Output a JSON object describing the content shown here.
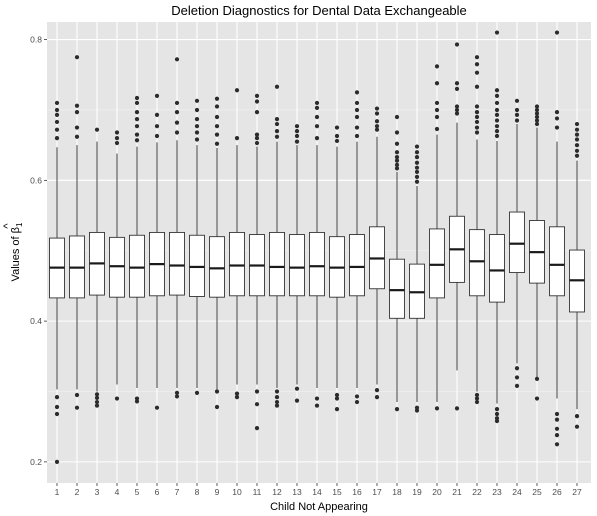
{
  "chart_data": {
    "type": "boxplot",
    "title": "Deletion Diagnostics for Dental Data Exchangeable",
    "xlabel": "Child Not Appearing",
    "ylabel_prefix": "Values of ",
    "ylabel_symbol": "β",
    "ylabel_hat": "^",
    "ylabel_subscript": "1",
    "ylim": [
      0.17,
      0.825
    ],
    "yticks": [
      0.2,
      0.4,
      0.6,
      0.8
    ],
    "ytick_labels": [
      "0.2",
      "0.4",
      "0.6",
      "0.8"
    ],
    "categories": [
      "1",
      "2",
      "3",
      "4",
      "5",
      "6",
      "7",
      "8",
      "9",
      "10",
      "11",
      "12",
      "13",
      "14",
      "15",
      "16",
      "17",
      "18",
      "19",
      "20",
      "21",
      "22",
      "23",
      "24",
      "25",
      "26",
      "27"
    ],
    "grid": true,
    "colors": {
      "panel_background": "#e5e5e5",
      "grid_major": "#ffffff",
      "box_fill": "#ffffff",
      "box_stroke": "#333333",
      "median": "#1a1a1a",
      "outlier": "#2b2b2b"
    },
    "boxes": [
      {
        "q1": 0.433,
        "median": 0.476,
        "q3": 0.518,
        "whisker_low": 0.303,
        "whisker_high": 0.647,
        "outliers": [
          0.2,
          0.268,
          0.278,
          0.292,
          0.66,
          0.672,
          0.683,
          0.693,
          0.7,
          0.71
        ]
      },
      {
        "q1": 0.433,
        "median": 0.476,
        "q3": 0.521,
        "whisker_low": 0.303,
        "whisker_high": 0.65,
        "outliers": [
          0.277,
          0.295,
          0.662,
          0.675,
          0.697,
          0.706,
          0.775
        ]
      },
      {
        "q1": 0.437,
        "median": 0.482,
        "q3": 0.526,
        "whisker_low": 0.3,
        "whisker_high": 0.655,
        "outliers": [
          0.28,
          0.285,
          0.291,
          0.296,
          0.672
        ]
      },
      {
        "q1": 0.434,
        "median": 0.478,
        "q3": 0.519,
        "whisker_low": 0.31,
        "whisker_high": 0.638,
        "outliers": [
          0.29,
          0.653,
          0.66,
          0.668
        ]
      },
      {
        "q1": 0.434,
        "median": 0.476,
        "q3": 0.522,
        "whisker_low": 0.305,
        "whisker_high": 0.648,
        "outliers": [
          0.286,
          0.29,
          0.657,
          0.665,
          0.677,
          0.687,
          0.697,
          0.71,
          0.717
        ]
      },
      {
        "q1": 0.436,
        "median": 0.481,
        "q3": 0.526,
        "whisker_low": 0.305,
        "whisker_high": 0.654,
        "outliers": [
          0.277,
          0.663,
          0.677,
          0.693,
          0.72
        ]
      },
      {
        "q1": 0.437,
        "median": 0.479,
        "q3": 0.526,
        "whisker_low": 0.305,
        "whisker_high": 0.657,
        "outliers": [
          0.293,
          0.298,
          0.668,
          0.682,
          0.697,
          0.71,
          0.772
        ]
      },
      {
        "q1": 0.435,
        "median": 0.477,
        "q3": 0.522,
        "whisker_low": 0.305,
        "whisker_high": 0.65,
        "outliers": [
          0.298,
          0.658,
          0.668,
          0.677,
          0.687,
          0.7,
          0.713
        ]
      },
      {
        "q1": 0.434,
        "median": 0.475,
        "q3": 0.52,
        "whisker_low": 0.303,
        "whisker_high": 0.646,
        "outliers": [
          0.278,
          0.3,
          0.652,
          0.665,
          0.677,
          0.69,
          0.705,
          0.716
        ]
      },
      {
        "q1": 0.436,
        "median": 0.479,
        "q3": 0.526,
        "whisker_low": 0.31,
        "whisker_high": 0.65,
        "outliers": [
          0.292,
          0.297,
          0.66,
          0.728
        ]
      },
      {
        "q1": 0.436,
        "median": 0.479,
        "q3": 0.523,
        "whisker_low": 0.31,
        "whisker_high": 0.648,
        "outliers": [
          0.248,
          0.282,
          0.3,
          0.653,
          0.66,
          0.665,
          0.697,
          0.712,
          0.72
        ]
      },
      {
        "q1": 0.436,
        "median": 0.477,
        "q3": 0.526,
        "whisker_low": 0.305,
        "whisker_high": 0.655,
        "outliers": [
          0.28,
          0.285,
          0.292,
          0.3,
          0.662,
          0.67,
          0.68,
          0.687,
          0.733
        ]
      },
      {
        "q1": 0.436,
        "median": 0.476,
        "q3": 0.523,
        "whisker_low": 0.31,
        "whisker_high": 0.65,
        "outliers": [
          0.287,
          0.304,
          0.655,
          0.663,
          0.67,
          0.677
        ]
      },
      {
        "q1": 0.436,
        "median": 0.478,
        "q3": 0.526,
        "whisker_low": 0.305,
        "whisker_high": 0.65,
        "outliers": [
          0.28,
          0.29,
          0.66,
          0.677,
          0.69,
          0.703,
          0.71
        ]
      },
      {
        "q1": 0.434,
        "median": 0.476,
        "q3": 0.52,
        "whisker_low": 0.305,
        "whisker_high": 0.648,
        "outliers": [
          0.275,
          0.29,
          0.295,
          0.656,
          0.663,
          0.675
        ]
      },
      {
        "q1": 0.436,
        "median": 0.477,
        "q3": 0.523,
        "whisker_low": 0.305,
        "whisker_high": 0.655,
        "outliers": [
          0.285,
          0.293,
          0.663,
          0.675,
          0.69,
          0.7,
          0.71,
          0.725
        ]
      },
      {
        "q1": 0.446,
        "median": 0.489,
        "q3": 0.534,
        "whisker_low": 0.31,
        "whisker_high": 0.662,
        "outliers": [
          0.292,
          0.302,
          0.672,
          0.677,
          0.684,
          0.695,
          0.702
        ]
      },
      {
        "q1": 0.404,
        "median": 0.444,
        "q3": 0.488,
        "whisker_low": 0.285,
        "whisker_high": 0.612,
        "outliers": [
          0.275,
          0.617,
          0.622,
          0.628,
          0.633,
          0.64,
          0.652,
          0.668,
          0.69
        ]
      },
      {
        "q1": 0.404,
        "median": 0.441,
        "q3": 0.481,
        "whisker_low": 0.285,
        "whisker_high": 0.592,
        "outliers": [
          0.273,
          0.277,
          0.598,
          0.605,
          0.612,
          0.618,
          0.625,
          0.633,
          0.64,
          0.648
        ]
      },
      {
        "q1": 0.433,
        "median": 0.48,
        "q3": 0.531,
        "whisker_low": 0.285,
        "whisker_high": 0.665,
        "outliers": [
          0.276,
          0.673,
          0.69,
          0.7,
          0.71,
          0.738,
          0.762
        ]
      },
      {
        "q1": 0.455,
        "median": 0.502,
        "q3": 0.549,
        "whisker_low": 0.33,
        "whisker_high": 0.682,
        "outliers": [
          0.276,
          0.695,
          0.7,
          0.705,
          0.73,
          0.738,
          0.793
        ]
      },
      {
        "q1": 0.436,
        "median": 0.485,
        "q3": 0.53,
        "whisker_low": 0.3,
        "whisker_high": 0.658,
        "outliers": [
          0.285,
          0.29,
          0.295,
          0.668,
          0.675,
          0.683,
          0.69,
          0.697,
          0.705,
          0.733,
          0.753,
          0.765,
          0.775
        ]
      },
      {
        "q1": 0.427,
        "median": 0.472,
        "q3": 0.523,
        "whisker_low": 0.283,
        "whisker_high": 0.656,
        "outliers": [
          0.258,
          0.262,
          0.268,
          0.275,
          0.663,
          0.67,
          0.677,
          0.685,
          0.693,
          0.7,
          0.71,
          0.72,
          0.728,
          0.81
        ]
      },
      {
        "q1": 0.469,
        "median": 0.51,
        "q3": 0.555,
        "whisker_low": 0.34,
        "whisker_high": 0.68,
        "outliers": [
          0.308,
          0.32,
          0.333,
          0.685,
          0.693,
          0.7,
          0.713
        ]
      },
      {
        "q1": 0.454,
        "median": 0.498,
        "q3": 0.543,
        "whisker_low": 0.32,
        "whisker_high": 0.675,
        "outliers": [
          0.29,
          0.318,
          0.68,
          0.685,
          0.69,
          0.695,
          0.7,
          0.705
        ]
      },
      {
        "q1": 0.436,
        "median": 0.48,
        "q3": 0.534,
        "whisker_low": 0.29,
        "whisker_high": 0.655,
        "outliers": [
          0.225,
          0.238,
          0.247,
          0.26,
          0.268,
          0.675,
          0.688,
          0.697,
          0.81
        ]
      },
      {
        "q1": 0.413,
        "median": 0.458,
        "q3": 0.501,
        "whisker_low": 0.275,
        "whisker_high": 0.628,
        "outliers": [
          0.25,
          0.265,
          0.635,
          0.642,
          0.65,
          0.658,
          0.665,
          0.672,
          0.68
        ]
      }
    ]
  }
}
